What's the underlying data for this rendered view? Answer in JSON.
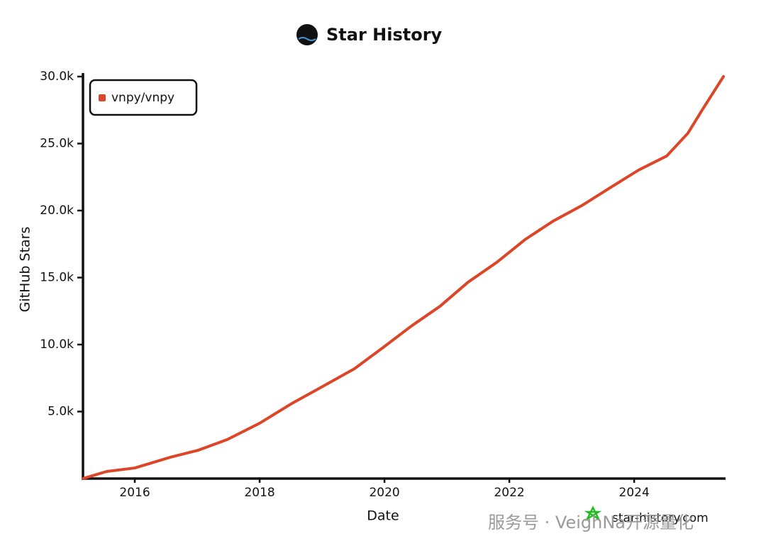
{
  "chart_data": {
    "type": "line",
    "title": "Star History",
    "x_label": "Date",
    "y_label": "GitHub Stars",
    "source": "star-history.com",
    "overlay_text": "服务号 · VeighNa开源量化",
    "x": [
      2015.17,
      2015.55,
      2016.0,
      2016.57,
      2017.02,
      2017.48,
      2018.0,
      2018.5,
      2018.95,
      2019.52,
      2019.98,
      2020.43,
      2020.89,
      2021.34,
      2021.8,
      2022.25,
      2022.7,
      2023.16,
      2023.61,
      2024.07,
      2024.52,
      2024.86,
      2025.09,
      2025.43
    ],
    "series": [
      {
        "name": "vnpy/vnpy",
        "color": "#dd4528",
        "values": [
          0,
          530,
          790,
          1590,
          2120,
          2910,
          4130,
          5560,
          6720,
          8200,
          9790,
          11380,
          12860,
          14660,
          16140,
          17830,
          19210,
          20370,
          21690,
          23020,
          24070,
          25770,
          27510,
          30000
        ]
      }
    ],
    "xlim": [
      2015.17,
      2025.43
    ],
    "xticks": [
      2016,
      2018,
      2020,
      2022,
      2024
    ],
    "ylim": [
      0,
      30000
    ],
    "yticks": [
      {
        "value": 5000,
        "label": "5.0k"
      },
      {
        "value": 10000,
        "label": "10.0k"
      },
      {
        "value": 15000,
        "label": "15.0k"
      },
      {
        "value": 20000,
        "label": "20.0k"
      },
      {
        "value": 25000,
        "label": "25.0k"
      },
      {
        "value": 30000,
        "label": "30.0k"
      }
    ],
    "legend": "top-left"
  }
}
